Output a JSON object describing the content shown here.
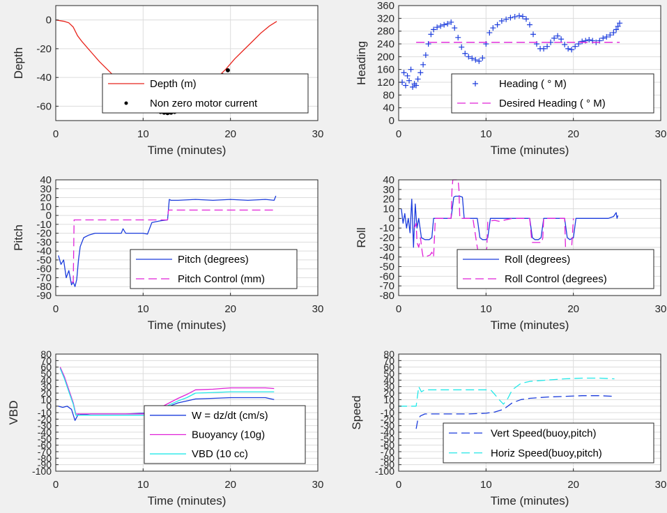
{
  "chart_data": [
    {
      "id": "depth",
      "type": "line",
      "xlabel": "Time (minutes)",
      "ylabel": "Depth",
      "xlim": [
        0,
        30
      ],
      "ylim": [
        -70,
        10
      ],
      "xticks": [
        "0",
        "10",
        "20",
        "30"
      ],
      "yticks": [
        "0",
        "-20",
        "-40",
        "-60"
      ],
      "grid": true,
      "legend_placement": "bottom-right",
      "series": [
        {
          "name": "Depth (m)",
          "style": "line",
          "color": "#e8241c",
          "x": [
            0,
            0.5,
            1.0,
            1.5,
            2.0,
            2.5,
            3.0,
            4.0,
            5.0,
            6.0,
            7.0,
            8.0,
            9.0,
            10.0,
            11.0,
            12.0,
            12.8,
            13.5,
            14.5,
            15.5,
            16.5,
            17.5,
            18.5,
            19.5,
            20.5,
            21.5,
            22.5,
            23.5,
            24.5,
            25.3
          ],
          "y": [
            0,
            -0.5,
            -1,
            -2,
            -5,
            -11,
            -15,
            -22,
            -29,
            -35,
            -41,
            -47,
            -53,
            -58,
            -62,
            -64.5,
            -65,
            -64,
            -61,
            -57,
            -52,
            -46,
            -40,
            -34,
            -27,
            -21,
            -15,
            -9,
            -4,
            -1
          ]
        },
        {
          "name": "Non zero motor current",
          "style": "dots",
          "color": "#000000",
          "x": [
            10.8,
            11.2,
            11.6,
            12.0,
            12.4,
            12.8,
            13.2,
            13.6,
            14.0,
            14.4,
            14.8,
            16.6,
            19.1,
            19.7
          ],
          "y": [
            -61.5,
            -62.5,
            -63.5,
            -64,
            -64.5,
            -64.8,
            -64.5,
            -64,
            -63.3,
            -62.5,
            -61.5,
            -52,
            -38.5,
            -35
          ]
        }
      ]
    },
    {
      "id": "heading",
      "type": "scatter",
      "xlabel": "Time (minutes)",
      "ylabel": "Heading",
      "xlim": [
        0,
        30
      ],
      "ylim": [
        0,
        360
      ],
      "xticks": [
        "0",
        "10",
        "20",
        "30"
      ],
      "yticks": [
        "0",
        "40",
        "80",
        "120",
        "160",
        "200",
        "240",
        "280",
        "320",
        "360"
      ],
      "grid": true,
      "legend_placement": "bottom-right",
      "series": [
        {
          "name": "Heading ( ° M)",
          "style": "plus",
          "color": "#1a3bdc",
          "x": [
            0.4,
            0.6,
            0.8,
            1.0,
            1.2,
            1.4,
            1.6,
            1.8,
            2.0,
            2.2,
            2.5,
            2.8,
            3.1,
            3.4,
            3.7,
            4.0,
            4.4,
            4.8,
            5.2,
            5.6,
            6.0,
            6.4,
            6.8,
            7.2,
            7.6,
            8.0,
            8.4,
            8.8,
            9.2,
            9.6,
            10.0,
            10.4,
            10.8,
            11.3,
            11.8,
            12.3,
            12.8,
            13.3,
            13.8,
            14.2,
            14.6,
            15.0,
            15.4,
            15.8,
            16.2,
            16.6,
            17.0,
            17.4,
            17.8,
            18.2,
            18.6,
            19.0,
            19.4,
            19.8,
            20.2,
            20.6,
            21.0,
            21.4,
            21.8,
            22.2,
            22.6,
            23.0,
            23.4,
            23.8,
            24.2,
            24.6,
            24.9,
            25.1,
            25.3
          ],
          "y": [
            120,
            150,
            110,
            140,
            125,
            160,
            105,
            115,
            110,
            130,
            150,
            175,
            205,
            240,
            270,
            285,
            292,
            296,
            300,
            303,
            308,
            290,
            260,
            230,
            210,
            200,
            195,
            190,
            186,
            196,
            240,
            275,
            290,
            300,
            312,
            317,
            322,
            325,
            328,
            326,
            318,
            300,
            270,
            240,
            225,
            225,
            232,
            245,
            258,
            265,
            255,
            238,
            225,
            222,
            232,
            240,
            248,
            250,
            253,
            250,
            245,
            250,
            258,
            262,
            268,
            275,
            285,
            295,
            305
          ]
        },
        {
          "name": "Desired Heading ( ° M)",
          "style": "dashed",
          "color": "#e020d8",
          "x": [
            2.0,
            25.3
          ],
          "y": [
            245,
            245
          ]
        }
      ]
    },
    {
      "id": "pitch",
      "type": "line",
      "xlabel": "Time (minutes)",
      "ylabel": "Pitch",
      "xlim": [
        0,
        30
      ],
      "ylim": [
        -90,
        40
      ],
      "xticks": [
        "0",
        "10",
        "20",
        "30"
      ],
      "yticks": [
        "40",
        "30",
        "20",
        "10",
        "0",
        "-10",
        "-20",
        "-30",
        "-40",
        "-50",
        "-60",
        "-70",
        "-80",
        "-90"
      ],
      "grid": true,
      "legend_placement": "bottom-right",
      "series": [
        {
          "name": "Pitch (degrees)",
          "style": "line",
          "color": "#1a3bdc",
          "x": [
            0.3,
            0.6,
            0.9,
            1.2,
            1.5,
            1.8,
            2.0,
            2.2,
            2.4,
            2.6,
            2.8,
            3.2,
            3.8,
            4.5,
            6.0,
            7.5,
            7.7,
            8.0,
            9.0,
            10.0,
            10.5,
            11.0,
            12.0,
            12.8,
            13.0,
            13.2,
            14.0,
            16.0,
            18.0,
            20.0,
            22.0,
            24.0,
            25.0,
            25.2
          ],
          "y": [
            -45,
            -55,
            -50,
            -70,
            -62,
            -78,
            -75,
            -80,
            -72,
            -50,
            -35,
            -25,
            -22,
            -20,
            -20,
            -20,
            -15,
            -20,
            -20,
            -20,
            -21,
            -8,
            -6,
            -5,
            18,
            17,
            17,
            18,
            17,
            18,
            17,
            18,
            17,
            22
          ]
        },
        {
          "name": "Pitch Control (mm)",
          "style": "dashed",
          "color": "#e020d8",
          "x": [
            1.8,
            2.0,
            2.1,
            2.3,
            10.6,
            10.7,
            12.8,
            12.9,
            25.3
          ],
          "y": [
            -75,
            -75,
            -5,
            -5,
            -5,
            -5,
            -5,
            6,
            6
          ]
        }
      ]
    },
    {
      "id": "roll",
      "type": "line",
      "xlabel": "Time (minutes)",
      "ylabel": "Roll",
      "xlim": [
        0,
        30
      ],
      "ylim": [
        -80,
        40
      ],
      "xticks": [
        "0",
        "10",
        "20",
        "30"
      ],
      "yticks": [
        "40",
        "30",
        "20",
        "10",
        "0",
        "-10",
        "-20",
        "-30",
        "-40",
        "-50",
        "-60",
        "-70",
        "-80"
      ],
      "grid": true,
      "legend_placement": "bottom-right",
      "series": [
        {
          "name": "Roll (degrees)",
          "style": "line",
          "color": "#1a3bdc",
          "x": [
            0.3,
            0.5,
            0.7,
            0.9,
            1.1,
            1.3,
            1.5,
            1.7,
            1.9,
            2.1,
            2.3,
            2.6,
            3.0,
            3.5,
            3.8,
            4.0,
            4.2,
            5.0,
            6.0,
            6.3,
            6.5,
            7.0,
            7.3,
            7.5,
            8.0,
            9.0,
            9.3,
            9.6,
            10.0,
            10.2,
            10.5,
            11.0,
            13.0,
            15.0,
            15.3,
            15.6,
            16.0,
            16.3,
            16.6,
            17.0,
            18.0,
            19.0,
            19.3,
            19.6,
            20.0,
            20.3,
            21.0,
            23.0,
            24.0,
            24.6,
            24.9,
            25.0,
            25.1
          ],
          "y": [
            10,
            -5,
            5,
            -10,
            0,
            -15,
            20,
            -30,
            15,
            -10,
            0,
            -20,
            -22,
            -22,
            -20,
            0,
            0,
            0,
            0,
            22,
            23,
            23,
            22,
            0,
            0,
            0,
            -20,
            -22,
            -22,
            -20,
            0,
            0,
            0,
            0,
            -20,
            -22,
            -22,
            -20,
            0,
            0,
            0,
            0,
            -20,
            -22,
            -20,
            0,
            0,
            0,
            0,
            2,
            6,
            0,
            3
          ]
        },
        {
          "name": "Roll Control (degrees)",
          "style": "dashed",
          "color": "#e020d8",
          "x": [
            1.8,
            2.0,
            2.1,
            2.3,
            2.5,
            2.7,
            2.8,
            3.0,
            3.6,
            3.8,
            4.0,
            4.2,
            5.0,
            6.0,
            6.1,
            6.2,
            6.5,
            6.8,
            6.9,
            7.0,
            7.8,
            8.5,
            9.0,
            9.1,
            9.2,
            9.6,
            10.0,
            10.1,
            10.2,
            11.0,
            11.5,
            12.0,
            13.0,
            15.0,
            15.2,
            15.3,
            15.5,
            16.0,
            16.4,
            16.5,
            16.6,
            17.0,
            18.0,
            19.0,
            19.1,
            19.2,
            19.5,
            19.7,
            19.8,
            20.0
          ],
          "y": [
            -10,
            -5,
            -25,
            -30,
            -20,
            -35,
            -40,
            -40,
            -38,
            -35,
            -40,
            0,
            0,
            0,
            30,
            40,
            40,
            40,
            30,
            0,
            0,
            0,
            -30,
            -35,
            -35,
            -35,
            -35,
            -30,
            -3,
            -2,
            -3,
            -2,
            0,
            0,
            -20,
            -25,
            -25,
            -25,
            -25,
            -20,
            0,
            0,
            0,
            0,
            -30,
            -35,
            -35,
            -35,
            -30,
            0
          ]
        }
      ]
    },
    {
      "id": "vbd",
      "type": "line",
      "xlabel": "Time (minutes)",
      "ylabel": "VBD",
      "xlim": [
        0,
        30
      ],
      "ylim": [
        -100,
        80
      ],
      "xticks": [
        "0",
        "10",
        "20",
        "30"
      ],
      "yticks": [
        "80",
        "70",
        "60",
        "50",
        "40",
        "30",
        "20",
        "10",
        "0",
        "-10",
        "-20",
        "-30",
        "-40",
        "-50",
        "-60",
        "-70",
        "-80",
        "-90",
        "-100"
      ],
      "ytick_labels_shown": [
        "80",
        "70",
        "60",
        "50",
        "40",
        "30",
        "20",
        "10",
        "0",
        "-10",
        "-20",
        "-30",
        "-40",
        "-50",
        "-60",
        "-70",
        "-80",
        "-90",
        "-100"
      ],
      "grid": true,
      "legend_placement": "bottom-right",
      "series": [
        {
          "name": "W = dz/dt (cm/s)",
          "style": "line",
          "color": "#1a3bdc",
          "x": [
            0.3,
            0.8,
            1.3,
            1.8,
            2.2,
            2.6,
            3.0,
            4.0,
            6.0,
            8.0,
            10.0,
            11.0,
            12.0,
            13.0,
            14.0,
            15.0,
            16.0,
            18.0,
            20.0,
            22.0,
            24.0,
            25.0
          ],
          "y": [
            0,
            -2,
            0,
            -5,
            -22,
            -12,
            -13,
            -12,
            -12,
            -12,
            -11,
            -10,
            -5,
            0,
            5,
            8,
            11,
            12,
            13,
            13,
            13,
            10
          ]
        },
        {
          "name": "Buoyancy (10g)",
          "style": "line",
          "color": "#e020d8",
          "x": [
            0.5,
            1.0,
            1.5,
            2.0,
            2.3,
            3.0,
            5.0,
            8.0,
            10.5,
            11.0,
            12.0,
            13.0,
            14.0,
            15.0,
            16.0,
            18.0,
            20.0,
            22.0,
            24.0,
            25.0
          ],
          "y": [
            60,
            45,
            25,
            5,
            -12,
            -12,
            -12,
            -12,
            -12,
            -8,
            -2,
            5,
            12,
            18,
            25,
            26,
            28,
            28,
            28,
            27
          ]
        },
        {
          "name": "VBD (10 cc)",
          "style": "line",
          "color": "#22e8e8",
          "x": [
            0.5,
            1.0,
            1.5,
            2.0,
            2.3,
            3.0,
            5.0,
            8.0,
            10.5,
            11.0,
            12.0,
            13.0,
            14.0,
            15.0,
            16.0,
            18.0,
            20.0,
            22.0,
            24.0,
            25.0
          ],
          "y": [
            58,
            42,
            22,
            3,
            -14,
            -14,
            -14,
            -14,
            -14,
            -10,
            -5,
            2,
            8,
            13,
            20,
            21,
            22,
            22,
            22,
            22
          ]
        }
      ]
    },
    {
      "id": "speed",
      "type": "line",
      "xlabel": "Time (minutes)",
      "ylabel": "Speed",
      "xlim": [
        0,
        30
      ],
      "ylim": [
        -100,
        80
      ],
      "xticks": [
        "0",
        "10",
        "20",
        "30"
      ],
      "yticks": [
        "80",
        "70",
        "60",
        "50",
        "40",
        "30",
        "20",
        "10",
        "0",
        "-10",
        "-20",
        "-30",
        "-40",
        "-50",
        "-60",
        "-70",
        "-80",
        "-90",
        "-100"
      ],
      "grid": true,
      "legend_placement": "bottom-right",
      "series": [
        {
          "name": "Vert Speed(buoy,pitch)",
          "style": "dashed",
          "color": "#1a3bdc",
          "x": [
            2.0,
            2.2,
            2.5,
            3.0,
            5.0,
            8.0,
            10.0,
            11.0,
            12.0,
            13.0,
            14.0,
            15.0,
            17.0,
            19.0,
            21.0,
            23.0,
            24.7
          ],
          "y": [
            -35,
            -20,
            -15,
            -12,
            -12,
            -12,
            -11,
            -9,
            -5,
            5,
            10,
            12,
            14,
            15,
            16,
            16,
            15
          ]
        },
        {
          "name": "Horiz Speed(buoy,pitch)",
          "style": "dashed",
          "color": "#22e8e8",
          "x": [
            0.0,
            2.0,
            2.3,
            2.6,
            3.0,
            5.0,
            8.0,
            10.0,
            10.6,
            11.0,
            11.5,
            12.0,
            12.5,
            13.0,
            14.0,
            15.0,
            17.0,
            19.0,
            21.0,
            23.0,
            24.7
          ],
          "y": [
            0,
            0,
            30,
            22,
            25,
            25,
            25,
            25,
            24,
            18,
            10,
            3,
            12,
            25,
            35,
            38,
            40,
            42,
            43,
            43,
            42
          ]
        }
      ]
    }
  ]
}
